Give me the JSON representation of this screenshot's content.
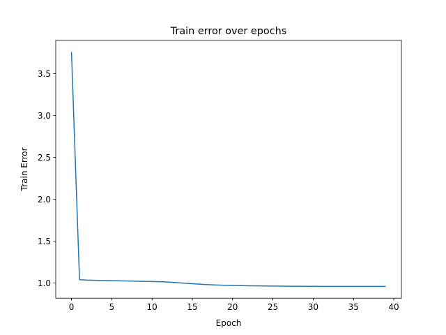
{
  "chart_data": {
    "type": "line",
    "title": "Train error over epochs",
    "xlabel": "Epoch",
    "ylabel": "Train Error",
    "xlim": [
      -1.95,
      40.95
    ],
    "ylim": [
      0.82,
      3.9
    ],
    "xticks": [
      0,
      5,
      10,
      15,
      20,
      25,
      30,
      35,
      40
    ],
    "xtick_labels": [
      "0",
      "5",
      "10",
      "15",
      "20",
      "25",
      "30",
      "35",
      "40"
    ],
    "yticks": [
      1.0,
      1.5,
      2.0,
      2.5,
      3.0,
      3.5
    ],
    "ytick_labels": [
      "1.0",
      "1.5",
      "2.0",
      "2.5",
      "3.0",
      "3.5"
    ],
    "grid": false,
    "series": [
      {
        "color": "#1f77b4",
        "x": [
          0,
          1,
          2,
          3,
          4,
          5,
          6,
          7,
          8,
          9,
          10,
          11,
          12,
          13,
          14,
          15,
          16,
          17,
          18,
          19,
          20,
          21,
          22,
          23,
          24,
          25,
          26,
          27,
          28,
          29,
          30,
          31,
          32,
          33,
          34,
          35,
          36,
          37,
          38,
          39
        ],
        "y": [
          3.76,
          1.04,
          1.035,
          1.033,
          1.031,
          1.029,
          1.027,
          1.025,
          1.023,
          1.021,
          1.019,
          1.016,
          1.012,
          1.006,
          0.999,
          0.992,
          0.986,
          0.981,
          0.977,
          0.974,
          0.972,
          0.97,
          0.968,
          0.966,
          0.965,
          0.964,
          0.963,
          0.962,
          0.962,
          0.961,
          0.961,
          0.96,
          0.96,
          0.96,
          0.96,
          0.96,
          0.96,
          0.96,
          0.96,
          0.96
        ]
      }
    ]
  }
}
